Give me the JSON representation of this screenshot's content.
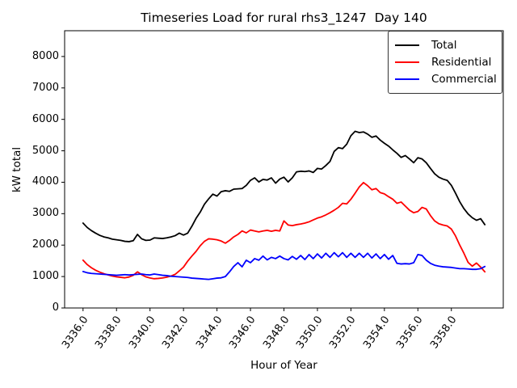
{
  "figure": {
    "background": "#ffffff"
  },
  "chart_data": {
    "type": "line",
    "title": "Timeseries Load for rural rhs3_1247  Day 140",
    "xlabel": "Hour of Year",
    "ylabel": "kW total",
    "grid": false,
    "legend_position": "upper right",
    "x_start": 3336.0,
    "x_step": 0.25,
    "xlim": [
      3334.9,
      3361.1
    ],
    "ylim": [
      0,
      8820
    ],
    "x_tick_values": [
      3336,
      3338,
      3340,
      3342,
      3344,
      3346,
      3348,
      3350,
      3352,
      3354,
      3356,
      3358
    ],
    "x_tick_labels": [
      "3336.0",
      "3338.0",
      "3340.0",
      "3342.0",
      "3344.0",
      "3346.0",
      "3348.0",
      "3350.0",
      "3352.0",
      "3354.0",
      "3356.0",
      "3358.0"
    ],
    "y_tick_values": [
      0,
      1000,
      2000,
      3000,
      4000,
      5000,
      6000,
      7000,
      8000
    ],
    "y_tick_labels": [
      "0",
      "1000",
      "2000",
      "3000",
      "4000",
      "5000",
      "6000",
      "7000",
      "8000"
    ],
    "series": [
      {
        "name": "Total",
        "color": "#000000",
        "values": [
          2700,
          2560,
          2460,
          2380,
          2310,
          2260,
          2230,
          2190,
          2170,
          2150,
          2120,
          2110,
          2140,
          2340,
          2200,
          2150,
          2160,
          2230,
          2220,
          2210,
          2230,
          2260,
          2300,
          2380,
          2320,
          2380,
          2600,
          2850,
          3050,
          3300,
          3470,
          3620,
          3560,
          3700,
          3730,
          3710,
          3780,
          3790,
          3800,
          3900,
          4060,
          4140,
          4010,
          4090,
          4070,
          4140,
          3970,
          4100,
          4160,
          4010,
          4140,
          4330,
          4350,
          4340,
          4360,
          4310,
          4440,
          4420,
          4530,
          4660,
          4980,
          5100,
          5070,
          5210,
          5480,
          5620,
          5580,
          5600,
          5530,
          5430,
          5470,
          5340,
          5240,
          5150,
          5030,
          4920,
          4790,
          4850,
          4740,
          4620,
          4780,
          4740,
          4620,
          4440,
          4270,
          4160,
          4100,
          4060,
          3900,
          3650,
          3380,
          3160,
          2990,
          2870,
          2790,
          2840,
          2650
        ]
      },
      {
        "name": "Residential",
        "color": "#ff0000",
        "values": [
          1520,
          1380,
          1280,
          1200,
          1140,
          1090,
          1050,
          1015,
          990,
          975,
          960,
          985,
          1040,
          1150,
          1060,
          990,
          955,
          930,
          940,
          955,
          980,
          1015,
          1070,
          1180,
          1300,
          1490,
          1650,
          1800,
          1980,
          2120,
          2200,
          2190,
          2170,
          2130,
          2060,
          2150,
          2260,
          2340,
          2450,
          2390,
          2480,
          2450,
          2420,
          2450,
          2470,
          2440,
          2470,
          2450,
          2770,
          2640,
          2620,
          2650,
          2670,
          2700,
          2740,
          2800,
          2860,
          2900,
          2960,
          3030,
          3110,
          3200,
          3330,
          3310,
          3460,
          3650,
          3850,
          3990,
          3890,
          3760,
          3800,
          3670,
          3630,
          3540,
          3460,
          3330,
          3370,
          3240,
          3110,
          3030,
          3070,
          3200,
          3150,
          2940,
          2770,
          2680,
          2640,
          2610,
          2510,
          2290,
          2000,
          1740,
          1450,
          1330,
          1430,
          1300,
          1150
        ]
      },
      {
        "name": "Commercial",
        "color": "#0000ff",
        "values": [
          1160,
          1120,
          1100,
          1090,
          1080,
          1070,
          1060,
          1050,
          1040,
          1050,
          1060,
          1050,
          1060,
          1070,
          1080,
          1060,
          1050,
          1080,
          1060,
          1040,
          1030,
          1010,
          1000,
          990,
          980,
          970,
          950,
          940,
          930,
          920,
          910,
          930,
          950,
          960,
          1000,
          1150,
          1320,
          1440,
          1310,
          1520,
          1440,
          1570,
          1520,
          1650,
          1530,
          1610,
          1570,
          1650,
          1570,
          1530,
          1640,
          1550,
          1670,
          1540,
          1700,
          1570,
          1720,
          1590,
          1740,
          1610,
          1760,
          1630,
          1760,
          1610,
          1740,
          1610,
          1740,
          1610,
          1740,
          1590,
          1720,
          1570,
          1700,
          1550,
          1670,
          1420,
          1400,
          1410,
          1400,
          1440,
          1700,
          1670,
          1520,
          1420,
          1360,
          1330,
          1310,
          1300,
          1290,
          1270,
          1250,
          1250,
          1240,
          1230,
          1230,
          1250,
          1320
        ]
      }
    ]
  }
}
